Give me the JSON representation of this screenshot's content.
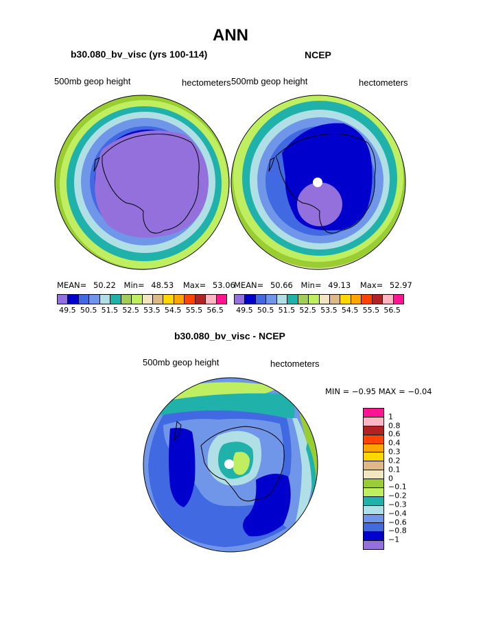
{
  "main_title": "ANN",
  "left_panel": {
    "title": "b30.080_bv_visc (yrs 100-114)",
    "field_label": "500mb geop height",
    "units_label": "hectometers",
    "mean_label": "MEAN=",
    "mean": "50.22",
    "min_label": "Min=",
    "min": "48.53",
    "max_label": "Max=",
    "max": "53.06"
  },
  "right_panel": {
    "title": "NCEP",
    "field_label": "500mb geop height",
    "units_label": "hectometers",
    "mean_label": "MEAN=",
    "mean": "50.66",
    "min_label": "Min=",
    "min": "49.13",
    "max_label": "Max=",
    "max": "52.97"
  },
  "diff_panel": {
    "title": "b30.080_bv_visc - NCEP",
    "field_label": "500mb geop height",
    "units_label": "hectometers",
    "minmax_text": "MIN =  −0.95  MAX =  −0.04"
  },
  "colors": {
    "height_scale": [
      "#9370db",
      "#0000cd",
      "#4169e1",
      "#6f96e8",
      "#b0e0e6",
      "#20b2aa",
      "#a2cd5a",
      "#bfef60",
      "#f2e6c0",
      "#deb887",
      "#ffd700",
      "#ffa500",
      "#ff4500",
      "#b22222",
      "#ffb6c1",
      "#ff1493"
    ],
    "diff_scale_top_to_bottom": [
      "#ff1493",
      "#ffb6c1",
      "#b22222",
      "#ff4500",
      "#ffa500",
      "#ffd700",
      "#deb887",
      "#f2e6c0",
      "#9acd32",
      "#bfef60",
      "#20b2aa",
      "#b0e0e6",
      "#6f96e8",
      "#4169e1",
      "#0000cd",
      "#9370db"
    ]
  },
  "chart_data": [
    {
      "type": "heatmap",
      "title": "b30.080_bv_visc (yrs 100-114)",
      "variable": "500mb geop height",
      "units": "hectometers",
      "mean": 50.22,
      "min": 48.53,
      "max": 53.06,
      "contour_levels": [
        49.5,
        50,
        50.5,
        51,
        51.5,
        52,
        52.5,
        53,
        53.5,
        54,
        54.5,
        55,
        55.5,
        56,
        56.5
      ],
      "tick_labels": [
        "49.5",
        "50.5",
        "51.5",
        "52.5",
        "53.5",
        "54.5",
        "55.5",
        "56.5"
      ]
    },
    {
      "type": "heatmap",
      "title": "NCEP",
      "variable": "500mb geop height",
      "units": "hectometers",
      "mean": 50.66,
      "min": 49.13,
      "max": 52.97,
      "contour_levels": [
        49.5,
        50,
        50.5,
        51,
        51.5,
        52,
        52.5,
        53,
        53.5,
        54,
        54.5,
        55,
        55.5,
        56,
        56.5
      ],
      "tick_labels": [
        "49.5",
        "50.5",
        "51.5",
        "52.5",
        "53.5",
        "54.5",
        "55.5",
        "56.5"
      ]
    },
    {
      "type": "heatmap",
      "title": "b30.080_bv_visc - NCEP",
      "variable": "500mb geop height",
      "units": "hectometers",
      "min": -0.95,
      "max": -0.04,
      "contour_levels": [
        -1,
        -0.8,
        -0.6,
        -0.4,
        -0.3,
        -0.2,
        -0.1,
        0,
        0.1,
        0.2,
        0.3,
        0.4,
        0.6,
        0.8,
        1
      ],
      "tick_labels": [
        "1",
        "0.8",
        "0.6",
        "0.4",
        "0.3",
        "0.2",
        "0.1",
        "0",
        "−0.1",
        "−0.2",
        "−0.3",
        "−0.4",
        "−0.6",
        "−0.8",
        "−1"
      ]
    }
  ]
}
